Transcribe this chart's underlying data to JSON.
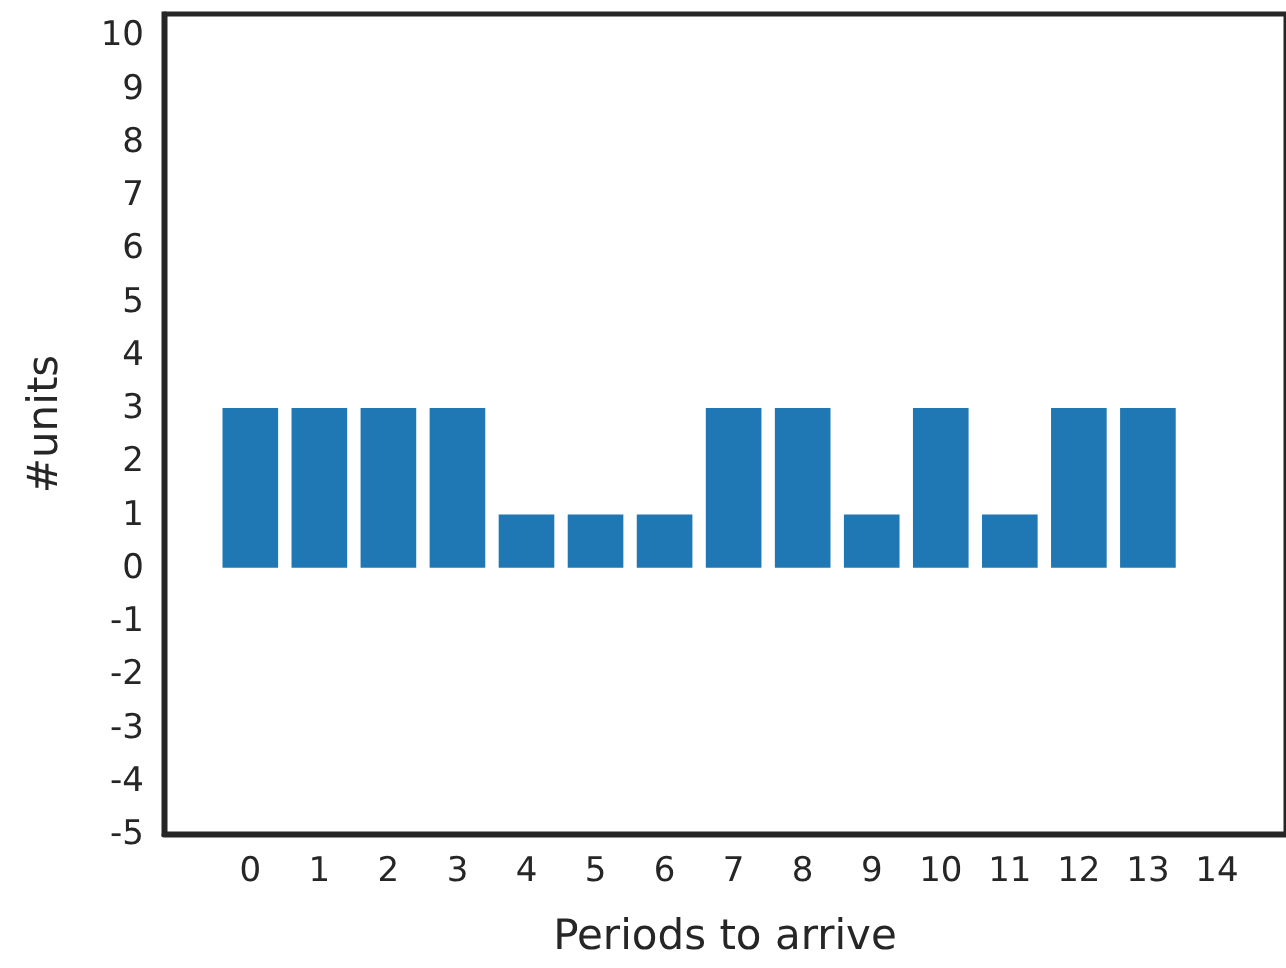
{
  "chart_data": {
    "type": "bar",
    "xlabel": "Periods to arrive",
    "ylabel": "#units",
    "x": [
      0,
      1,
      2,
      3,
      4,
      5,
      6,
      7,
      8,
      9,
      10,
      11,
      12,
      13
    ],
    "series": [
      {
        "color": "#1f77b4",
        "values": [
          3,
          3,
          3,
          3,
          1,
          1,
          1,
          3,
          3,
          1,
          3,
          1,
          3,
          3
        ]
      }
    ],
    "xlim": [
      -1.25,
      15
    ],
    "xticks": [
      0,
      1,
      2,
      3,
      4,
      5,
      6,
      7,
      8,
      9,
      10,
      11,
      12,
      13,
      14
    ],
    "ylim": [
      -5,
      10.4
    ],
    "yticks": [
      -5,
      -4,
      -3,
      -2,
      -1,
      0,
      1,
      2,
      3,
      4,
      5,
      6,
      7,
      8,
      9,
      10
    ],
    "grid": false
  }
}
